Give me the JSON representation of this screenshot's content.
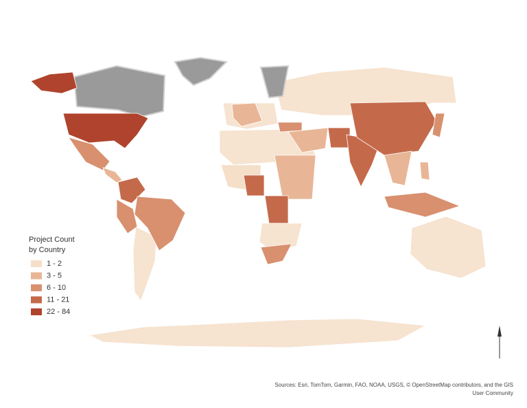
{
  "legend": {
    "title": [
      "Project Count",
      "by Country"
    ],
    "entries": [
      {
        "label": "1 - 2",
        "color": "#f5dfc9"
      },
      {
        "label": "3 - 5",
        "color": "#e8b696"
      },
      {
        "label": "6 - 10",
        "color": "#d8906f"
      },
      {
        "label": "11 - 21",
        "color": "#c46a4b"
      },
      {
        "label": "22 - 84",
        "color": "#b0432d"
      }
    ]
  },
  "credits": "Sources: Esri, TomTom, Garmin, FAO, NOAA, USGS, © OpenStreetMap contributors, and the GIS User Community"
}
